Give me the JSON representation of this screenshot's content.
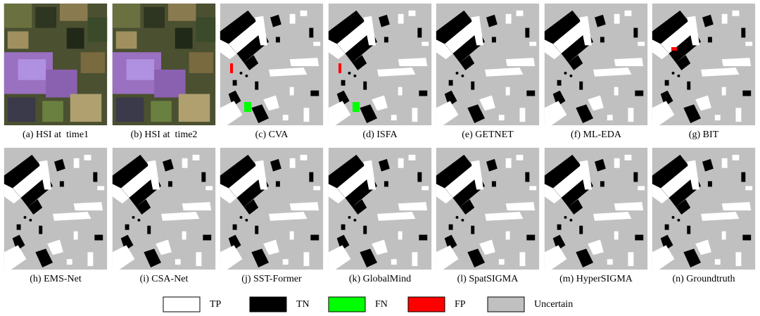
{
  "panels": [
    {
      "caption": "(a) HSI at  time1"
    },
    {
      "caption": "(b) HSI at  time2"
    },
    {
      "caption": "(c) CVA"
    },
    {
      "caption": "(d) ISFA"
    },
    {
      "caption": "(e) GETNET"
    },
    {
      "caption": "(f) ML-EDA"
    },
    {
      "caption": "(g) BIT"
    },
    {
      "caption": "(h) EMS-Net"
    },
    {
      "caption": "(i) CSA-Net"
    },
    {
      "caption": "(j) SST-Former"
    },
    {
      "caption": "(k) GlobalMind"
    },
    {
      "caption": "(l) SpatSIGMA"
    },
    {
      "caption": "(m) HyperSIGMA"
    },
    {
      "caption": "(n) Groundtruth"
    }
  ],
  "legend": [
    {
      "label": "TP",
      "color": "#ffffff"
    },
    {
      "label": "TN",
      "color": "#000000"
    },
    {
      "label": "FN",
      "color": "#00ff00"
    },
    {
      "label": "FP",
      "color": "#ff0000"
    },
    {
      "label": "Uncertain",
      "color": "#c0c0c0"
    }
  ]
}
